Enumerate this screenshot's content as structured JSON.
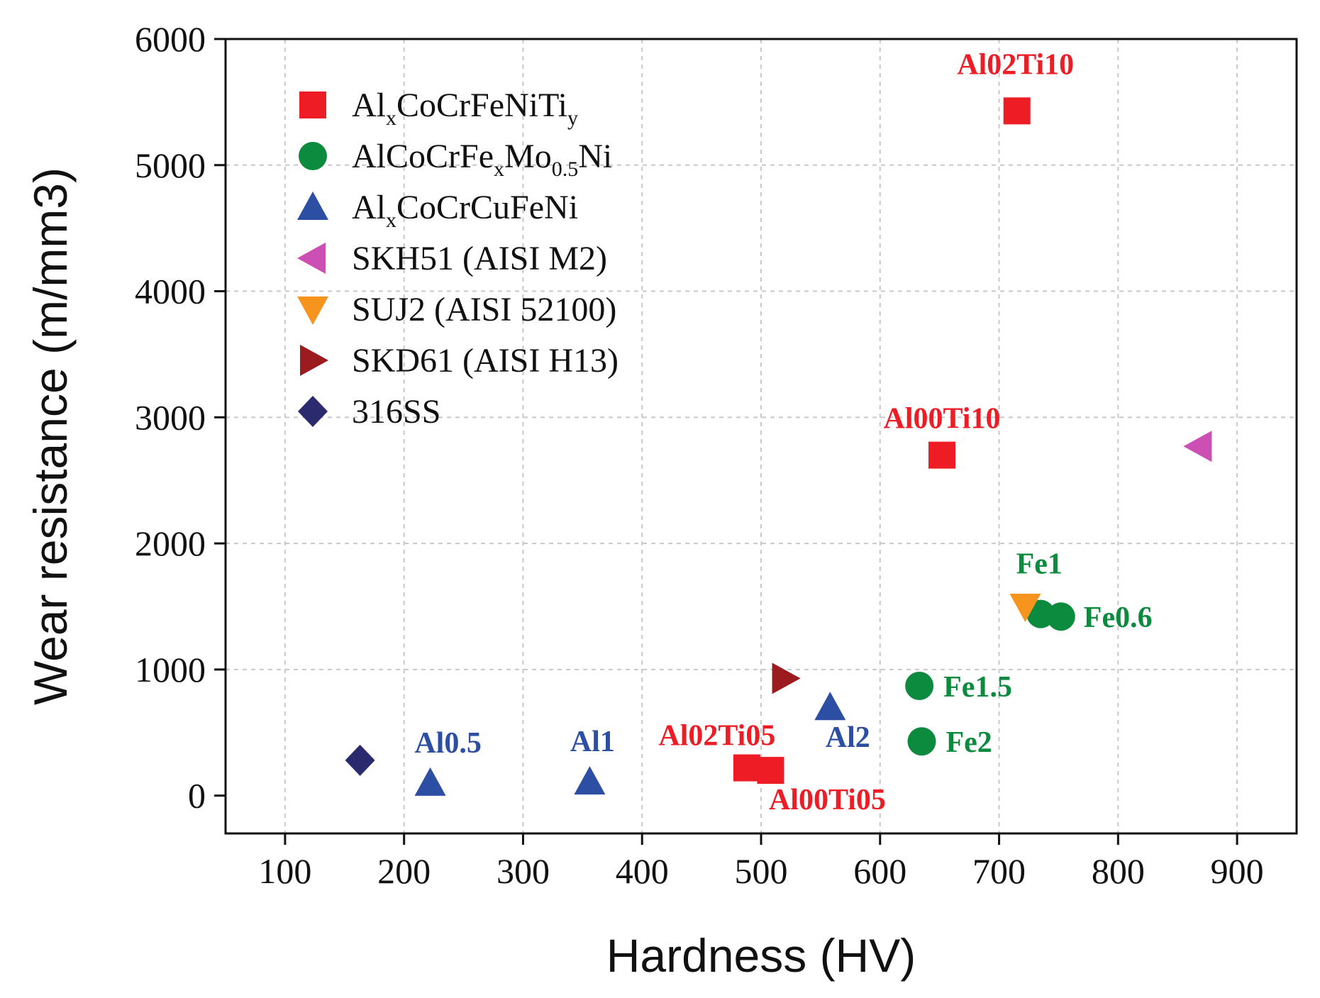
{
  "chart_data": {
    "type": "scatter",
    "title": "",
    "xlabel": "Hardness (HV)",
    "ylabel": "Wear resistance (m/mm3)",
    "xlim": [
      50,
      950
    ],
    "ylim": [
      -300,
      6000
    ],
    "xticks": [
      100,
      200,
      300,
      400,
      500,
      600,
      700,
      800,
      900
    ],
    "yticks": [
      0,
      1000,
      2000,
      3000,
      4000,
      5000,
      6000
    ],
    "grid": true,
    "legend_position": "top-left",
    "series": [
      {
        "name": "AlxCoCrFeNiTiy",
        "legend": {
          "base": "Al",
          "parts": [
            [
              "x",
              "sub"
            ],
            [
              "CoCrFeNiTi",
              ""
            ],
            [
              "y",
              "sub"
            ]
          ]
        },
        "marker": "square",
        "color": "#ee1c25",
        "label_color": "#ee1c25",
        "points": [
          {
            "x": 715,
            "y": 5430,
            "label": "Al02Ti10"
          },
          {
            "x": 652,
            "y": 2700,
            "label": "Al00Ti10"
          },
          {
            "x": 488,
            "y": 220,
            "label": "Al02Ti05"
          },
          {
            "x": 508,
            "y": 200,
            "label": "Al00Ti05"
          }
        ]
      },
      {
        "name": "AlCoCrFexMo0.5Ni",
        "legend": {
          "base": "AlCoCrFe",
          "parts": [
            [
              "x",
              "sub"
            ],
            [
              "Mo",
              ""
            ],
            [
              "0.5",
              "sub"
            ],
            [
              "Ni",
              ""
            ]
          ]
        },
        "marker": "circle",
        "color": "#0c8a3e",
        "label_color": "#0c8a3e",
        "points": [
          {
            "x": 735,
            "y": 1440,
            "label": "Fe1"
          },
          {
            "x": 752,
            "y": 1420,
            "label": "Fe0.6"
          },
          {
            "x": 633,
            "y": 870,
            "label": "Fe1.5"
          },
          {
            "x": 635,
            "y": 430,
            "label": "Fe2"
          }
        ]
      },
      {
        "name": "AlxCoCrCuFeNi",
        "legend": {
          "base": "Al",
          "parts": [
            [
              "x",
              "sub"
            ],
            [
              "CoCrCuFeNi",
              ""
            ]
          ]
        },
        "marker": "triangle-up",
        "color": "#2c4ea3",
        "label_color": "#2c4ea3",
        "points": [
          {
            "x": 222,
            "y": 100,
            "label": "Al0.5"
          },
          {
            "x": 356,
            "y": 110,
            "label": "Al1"
          },
          {
            "x": 558,
            "y": 700,
            "label": "Al2"
          }
        ]
      },
      {
        "name": "SKH51 (AISI M2)",
        "legend": {
          "base": "SKH51 (AISI M2)",
          "parts": []
        },
        "marker": "triangle-left",
        "color": "#cc4fb3",
        "points": [
          {
            "x": 868,
            "y": 2770,
            "label": ""
          }
        ]
      },
      {
        "name": "SUJ2 (AISI 52100)",
        "legend": {
          "base": "SUJ2 (AISI 52100)",
          "parts": []
        },
        "marker": "triangle-down",
        "color": "#f7941d",
        "points": [
          {
            "x": 722,
            "y": 1500,
            "label": ""
          }
        ]
      },
      {
        "name": "SKD61 (AISI H13)",
        "legend": {
          "base": "SKD61 (AISI H13)",
          "parts": []
        },
        "marker": "triangle-right",
        "color": "#9b1b1e",
        "points": [
          {
            "x": 520,
            "y": 930,
            "label": ""
          }
        ]
      },
      {
        "name": "316SS",
        "legend": {
          "base": "316SS",
          "parts": []
        },
        "marker": "diamond",
        "color": "#2b2a6e",
        "points": [
          {
            "x": 163,
            "y": 280,
            "label": ""
          }
        ]
      }
    ]
  }
}
